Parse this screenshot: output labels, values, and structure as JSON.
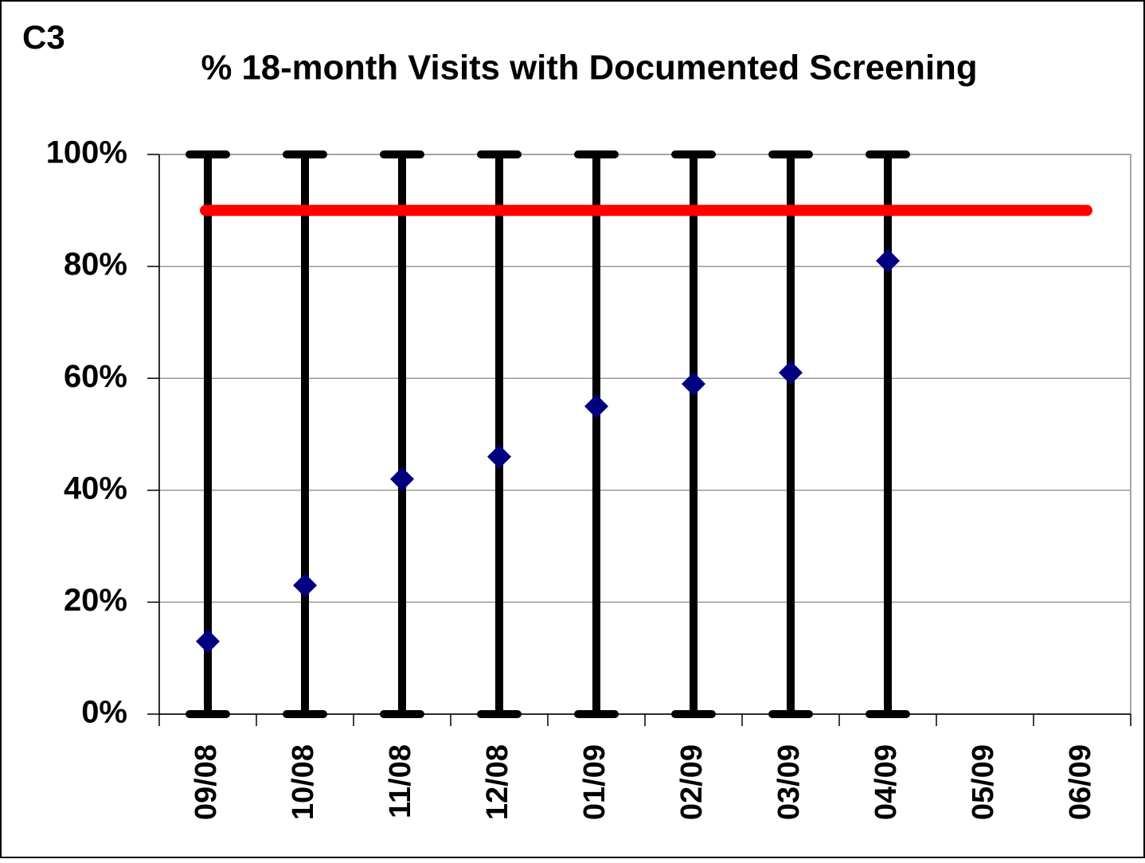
{
  "chart_data": {
    "type": "scatter",
    "label": "C3",
    "title": "% 18-month Visits with Documented Screening",
    "categories": [
      "09/08",
      "10/08",
      "11/08",
      "12/08",
      "01/09",
      "02/09",
      "03/09",
      "04/09",
      "05/09",
      "06/09"
    ],
    "series": [
      {
        "color": "#000080",
        "values": [
          13,
          23,
          42,
          46,
          55,
          59,
          61,
          81,
          null,
          null
        ]
      }
    ],
    "range_low": [
      0,
      0,
      0,
      0,
      0,
      0,
      0,
      0,
      null,
      null
    ],
    "range_high": [
      100,
      100,
      100,
      100,
      100,
      100,
      100,
      100,
      null,
      null
    ],
    "range_color": "#000000",
    "target": 90,
    "target_color": "#ff0000",
    "ylim": [
      0,
      100
    ],
    "yticks": [
      {
        "value": 0,
        "label": "0%"
      },
      {
        "value": 20,
        "label": "20%"
      },
      {
        "value": 40,
        "label": "40%"
      },
      {
        "value": 60,
        "label": "60%"
      },
      {
        "value": 80,
        "label": "80%"
      },
      {
        "value": 100,
        "label": "100%"
      }
    ],
    "grid": true
  }
}
